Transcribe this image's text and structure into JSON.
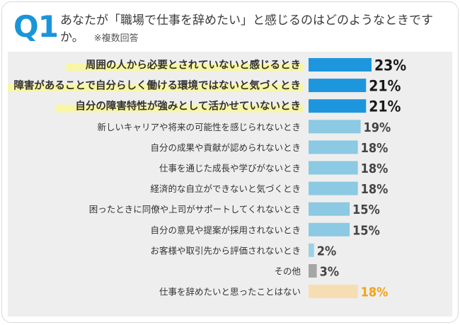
{
  "question": {
    "label": "Q1",
    "text": "あなたが「職場で仕事を辞めたい」と感じるのはどのようなときですか。",
    "note": "※複数回答"
  },
  "colors": {
    "top": "#1e96dd",
    "mid": "#8cc9e2",
    "small": "#9fd0e6",
    "other": "#a6a6a6",
    "never": "#f6deb2",
    "never_text": "#f3a21b",
    "highlight": "#f8f6a6",
    "accent": "#1a95d8",
    "text": "#333333"
  },
  "chart_data": {
    "type": "bar",
    "orientation": "horizontal",
    "unit": "%",
    "xlim": [
      0,
      23
    ],
    "categories": [
      "周囲の人から必要とされていないと感じるとき",
      "障害があることで自分らしく働ける環境ではないと気づくとき",
      "自分の障害特性が強みとして活かせていないとき",
      "新しいキャリアや将来の可能性を感じられないとき",
      "自分の成果や貢献が認められないとき",
      "仕事を通じた成長や学びがないとき",
      "経済的な自立ができないと気づくとき",
      "困ったときに同僚や上司がサポートしてくれないとき",
      "自分の意見や提案が採用されないとき",
      "お客様や取引先から評価されないとき",
      "その他",
      "仕事を辞めたいと思ったことはない"
    ],
    "values": [
      23,
      21,
      21,
      19,
      18,
      18,
      18,
      15,
      15,
      2,
      3,
      18
    ],
    "value_labels": [
      "23%",
      "21%",
      "21%",
      "19%",
      "18%",
      "18%",
      "18%",
      "15%",
      "15%",
      "2%",
      "3%",
      "18%"
    ],
    "highlighted": [
      true,
      true,
      true,
      false,
      false,
      false,
      false,
      false,
      false,
      false,
      false,
      false
    ],
    "bold": [
      true,
      true,
      true,
      false,
      false,
      false,
      false,
      false,
      false,
      false,
      false,
      false
    ],
    "bar_color": [
      "top",
      "top",
      "top",
      "mid",
      "mid",
      "mid",
      "mid",
      "mid",
      "mid",
      "small",
      "other",
      "never"
    ]
  }
}
